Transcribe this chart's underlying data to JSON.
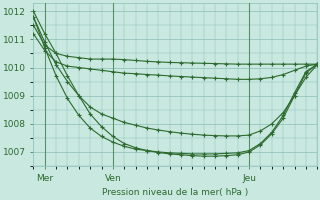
{
  "bg_color": "#c8e8e0",
  "grid_color": "#8bbfb8",
  "line_color": "#2d6a2d",
  "xlabel": "Pression niveau de la mer( hPa )",
  "ylim": [
    1006.5,
    1012.3
  ],
  "xlim": [
    0,
    100
  ],
  "yticks": [
    1007,
    1008,
    1009,
    1010,
    1011,
    1012
  ],
  "xtick_positions": [
    4,
    28,
    76
  ],
  "xtick_labels": [
    "Mer",
    "Ven",
    "Jeu"
  ],
  "vlines": [
    4,
    28,
    76
  ],
  "series": [
    {
      "x": [
        0,
        4,
        8,
        12,
        16,
        20,
        24,
        28,
        32,
        36,
        40,
        44,
        48,
        52,
        56,
        60,
        64,
        68,
        72,
        76,
        80,
        84,
        88,
        92,
        96,
        100
      ],
      "y": [
        1011.5,
        1010.8,
        1010.5,
        1010.4,
        1010.35,
        1010.3,
        1010.3,
        1010.3,
        1010.28,
        1010.25,
        1010.22,
        1010.2,
        1010.18,
        1010.17,
        1010.16,
        1010.15,
        1010.14,
        1010.13,
        1010.12,
        1010.12,
        1010.12,
        1010.12,
        1010.12,
        1010.12,
        1010.12,
        1010.12
      ]
    },
    {
      "x": [
        0,
        4,
        8,
        12,
        16,
        20,
        24,
        28,
        32,
        36,
        40,
        44,
        48,
        52,
        56,
        60,
        64,
        68,
        72,
        76,
        80,
        84,
        88,
        92,
        96,
        100
      ],
      "y": [
        1011.2,
        1010.6,
        1010.2,
        1010.05,
        1010.0,
        1009.95,
        1009.9,
        1009.85,
        1009.8,
        1009.78,
        1009.75,
        1009.73,
        1009.7,
        1009.68,
        1009.66,
        1009.64,
        1009.62,
        1009.6,
        1009.58,
        1009.58,
        1009.6,
        1009.65,
        1009.75,
        1009.9,
        1010.05,
        1010.12
      ]
    },
    {
      "x": [
        0,
        4,
        8,
        12,
        16,
        20,
        24,
        28,
        32,
        36,
        40,
        44,
        48,
        52,
        56,
        60,
        64,
        68,
        72,
        76,
        80,
        84,
        88,
        92,
        96,
        100
      ],
      "y": [
        1011.8,
        1010.9,
        1010.1,
        1009.5,
        1009.0,
        1008.6,
        1008.35,
        1008.2,
        1008.05,
        1007.95,
        1007.85,
        1007.78,
        1007.72,
        1007.67,
        1007.63,
        1007.6,
        1007.58,
        1007.57,
        1007.57,
        1007.6,
        1007.75,
        1008.0,
        1008.4,
        1009.0,
        1009.65,
        1010.1
      ]
    },
    {
      "x": [
        0,
        4,
        8,
        12,
        16,
        20,
        24,
        28,
        32,
        36,
        40,
        44,
        48,
        52,
        56,
        60,
        64,
        68,
        72,
        76,
        80,
        84,
        88,
        92,
        96,
        100
      ],
      "y": [
        1011.8,
        1010.7,
        1009.7,
        1008.9,
        1008.3,
        1007.85,
        1007.55,
        1007.35,
        1007.2,
        1007.1,
        1007.05,
        1007.0,
        1006.97,
        1006.95,
        1006.93,
        1006.93,
        1006.93,
        1006.95,
        1006.97,
        1007.05,
        1007.3,
        1007.7,
        1008.3,
        1009.1,
        1009.85,
        1010.12
      ]
    },
    {
      "x": [
        0,
        4,
        8,
        12,
        16,
        20,
        24,
        28,
        32,
        36,
        40,
        44,
        48,
        52,
        56,
        60,
        64,
        68,
        72,
        76,
        80,
        84,
        88,
        92,
        96,
        100
      ],
      "y": [
        1012.0,
        1011.2,
        1010.5,
        1009.7,
        1009.0,
        1008.35,
        1007.9,
        1007.55,
        1007.3,
        1007.15,
        1007.05,
        1006.98,
        1006.93,
        1006.9,
        1006.87,
        1006.85,
        1006.85,
        1006.87,
        1006.9,
        1007.0,
        1007.25,
        1007.65,
        1008.2,
        1009.0,
        1009.8,
        1010.12
      ]
    }
  ]
}
